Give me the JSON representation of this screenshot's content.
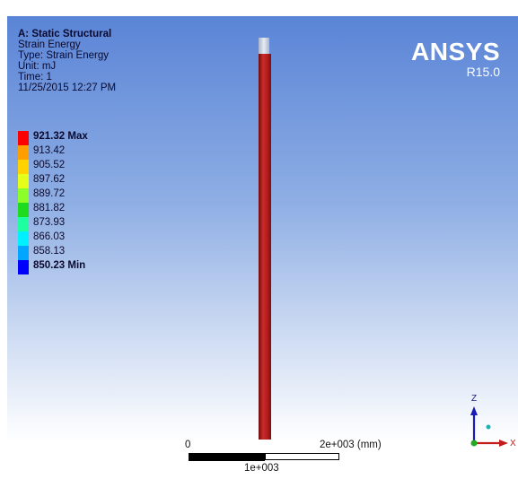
{
  "info": {
    "title": "A: Static Structural",
    "line1": "Strain Energy",
    "line2": "Type: Strain Energy",
    "line3": "Unit: mJ",
    "line4": "Time: 1",
    "line5": "11/25/2015 12:27 PM"
  },
  "brand": {
    "name": "ANSYS",
    "version": "R15.0"
  },
  "legend": [
    {
      "label": "921.32 Max",
      "color": "#ff0000",
      "bold": true
    },
    {
      "label": "913.42",
      "color": "#ff9e00",
      "bold": false
    },
    {
      "label": "905.52",
      "color": "#ffd200",
      "bold": false
    },
    {
      "label": "897.62",
      "color": "#e6ff1a",
      "bold": false
    },
    {
      "label": "889.72",
      "color": "#8cff2a",
      "bold": false
    },
    {
      "label": "881.82",
      "color": "#1edb1e",
      "bold": false
    },
    {
      "label": "873.93",
      "color": "#1effa0",
      "bold": false
    },
    {
      "label": "866.03",
      "color": "#00f0ff",
      "bold": false
    },
    {
      "label": "858.13",
      "color": "#00a6ff",
      "bold": false
    },
    {
      "label": "850.23 Min",
      "color": "#0000ff",
      "bold": true
    }
  ],
  "scale": {
    "zero": "0",
    "mid": "1e+003",
    "max": "2e+003 (mm)"
  },
  "axes": {
    "x": "X",
    "z": "Z"
  }
}
